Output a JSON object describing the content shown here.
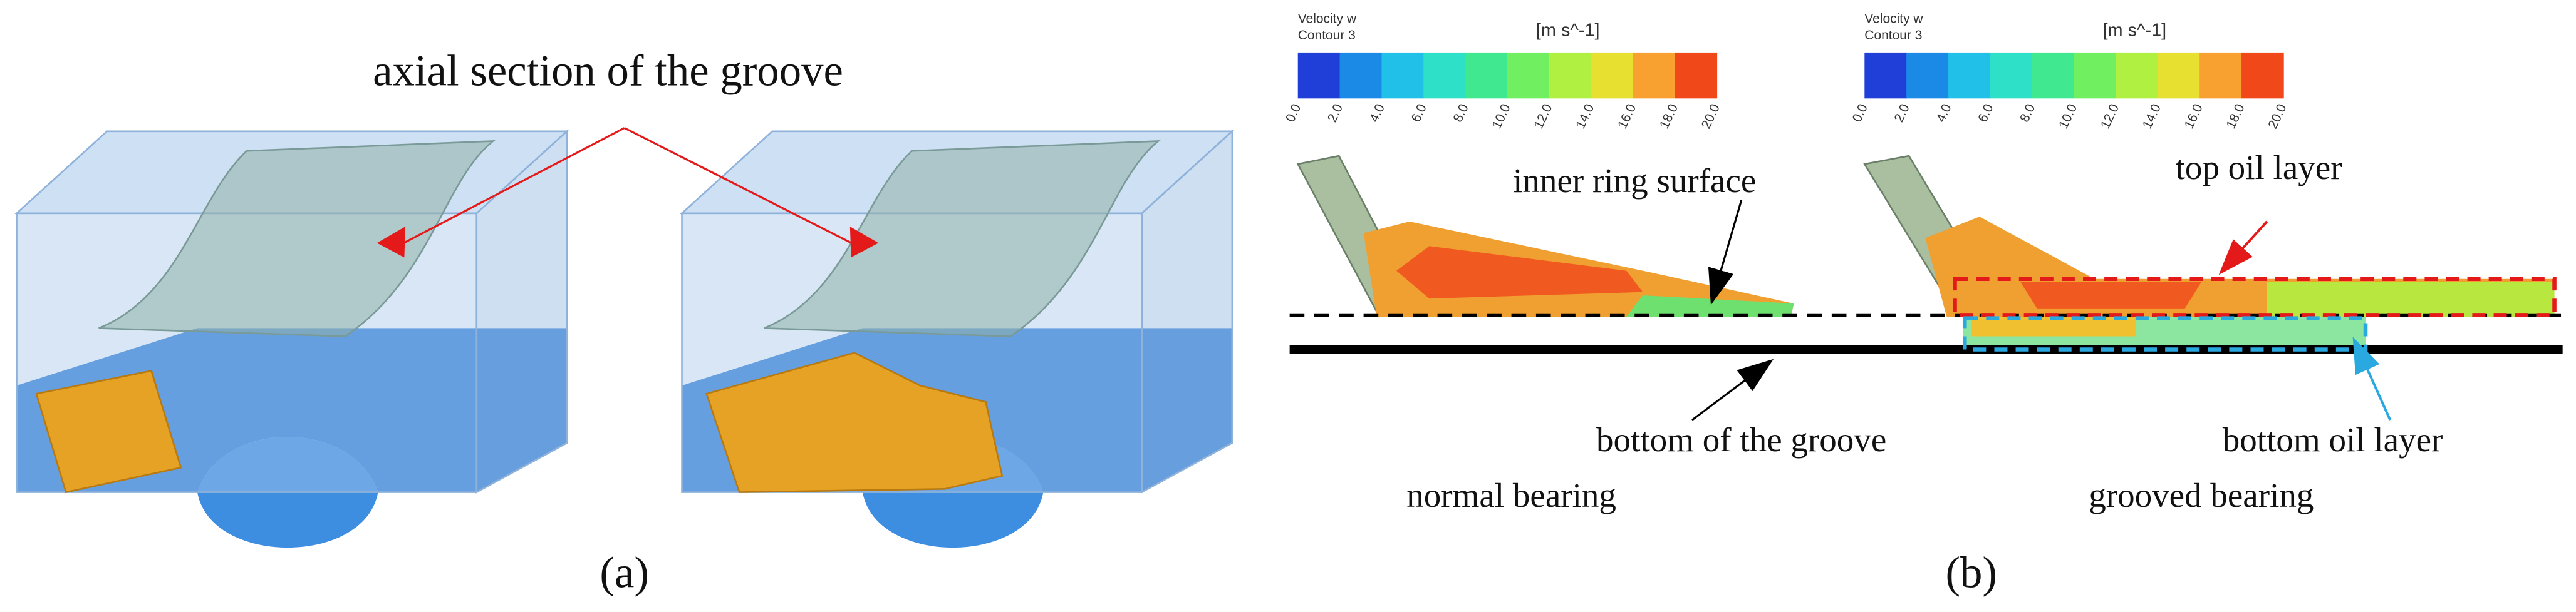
{
  "panel_a": {
    "annotation": "axial section of the groove",
    "caption": "(a)"
  },
  "panel_b": {
    "colorbars": [
      {
        "title": "Velocity w",
        "subtitle": "Contour 3",
        "unit": "[m s^-1]",
        "ticks": [
          "0.0",
          "2.0",
          "4.0",
          "6.0",
          "8.0",
          "10.0",
          "12.0",
          "14.0",
          "16.0",
          "18.0",
          "20.0"
        ]
      },
      {
        "title": "Velocity w",
        "subtitle": "Contour 3",
        "unit": "[m s^-1]",
        "ticks": [
          "0.0",
          "2.0",
          "4.0",
          "6.0",
          "8.0",
          "10.0",
          "12.0",
          "14.0",
          "16.0",
          "18.0",
          "20.0"
        ]
      }
    ],
    "labels": {
      "inner_ring": "inner ring surface",
      "top_oil": "top oil layer",
      "groove_bottom": "bottom of the groove",
      "bottom_oil": "bottom oil layer",
      "normal": "normal bearing",
      "grooved": "grooved bearing"
    },
    "caption": "(b)"
  }
}
